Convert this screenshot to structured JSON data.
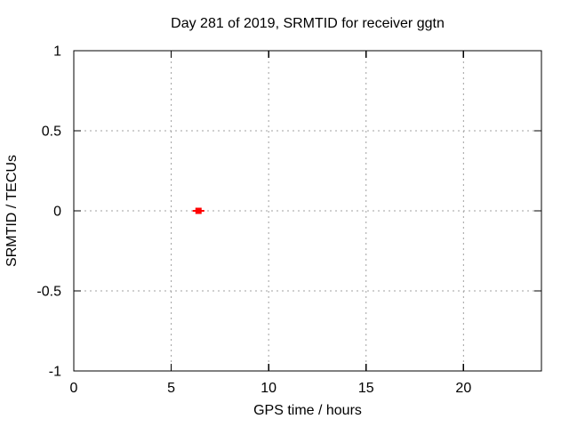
{
  "chart_data": {
    "type": "scatter",
    "title": "Day 281 of 2019, SRMTID for receiver ggtn",
    "xlabel": "GPS time / hours",
    "ylabel": "SRMTID / TECUs",
    "xlim": [
      0,
      24
    ],
    "ylim": [
      -1,
      1
    ],
    "x_ticks": {
      "values": [
        0,
        5,
        10,
        15,
        20
      ],
      "labels": [
        "0",
        "5",
        "10",
        "15",
        "20"
      ]
    },
    "y_ticks": {
      "values": [
        -1,
        -0.5,
        0,
        0.5,
        1
      ],
      "labels": [
        "-1",
        "-0.5",
        "0",
        "0.5",
        "1"
      ]
    },
    "grid": true,
    "grid_style": "dashed",
    "legend": false,
    "colors": {
      "background": "#ffffff",
      "border": "#000000",
      "grid": "#a0a0a0",
      "text": "#000000"
    },
    "series": [
      {
        "marker": "filled-square-with-errorbar-cap",
        "color": "#ff0000",
        "points": [
          {
            "x": 6.4,
            "y": 0.0,
            "xerr": 0.3
          }
        ]
      }
    ]
  }
}
